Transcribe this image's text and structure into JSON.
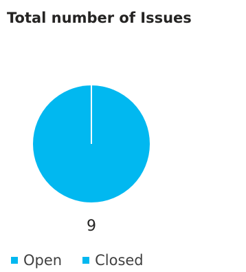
{
  "header": {
    "title": "Total number of Issues"
  },
  "chart_data": {
    "type": "pie",
    "title": "Total number of Issues",
    "total_label": "9",
    "slices": [
      {
        "name": "Open",
        "value": 9,
        "color": "#01B8F0"
      },
      {
        "name": "Closed",
        "value": 0,
        "color": "#01B8F0"
      }
    ],
    "legend": {
      "placement": "bottom-left",
      "items": [
        {
          "label": "Open",
          "color": "#01B8F0"
        },
        {
          "label": "Closed",
          "color": "#01B8F0"
        }
      ]
    }
  }
}
